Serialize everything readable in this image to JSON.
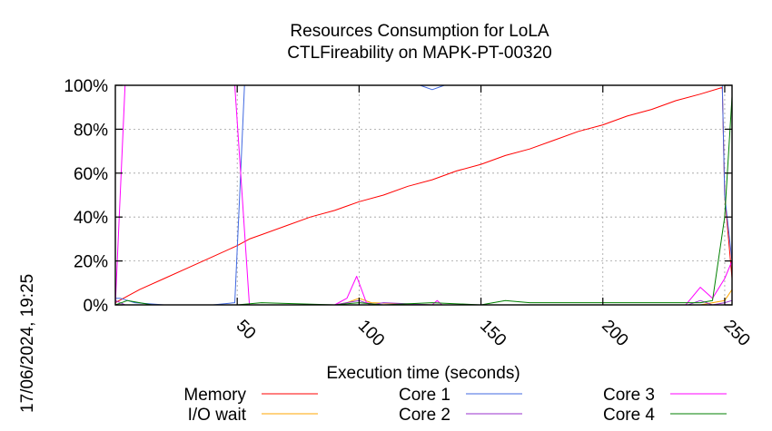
{
  "chart_data": {
    "type": "line",
    "title": [
      "Resources Consumption for LoLA",
      "CTLFireability on MAPK-PT-00320"
    ],
    "xlabel": "Execution time (seconds)",
    "ylabel": "",
    "timestamp": "17/06/2024, 19:25",
    "xlim": [
      0,
      253
    ],
    "ylim": [
      0,
      100
    ],
    "x_ticks": [
      50,
      100,
      150,
      200,
      250
    ],
    "x_tick_labels": [
      "50",
      "100",
      "150",
      "200",
      "250"
    ],
    "y_ticks": [
      0,
      20,
      40,
      60,
      80,
      100
    ],
    "y_tick_labels": [
      "0%",
      "20%",
      "40%",
      "60%",
      "80%",
      "100%"
    ],
    "grid": "vertical-and-horizontal-dashed",
    "legend_placement": "below",
    "series": [
      {
        "name": "Memory",
        "color": "#ff0000",
        "x": [
          0,
          5,
          10,
          20,
          30,
          40,
          50,
          55,
          60,
          70,
          80,
          90,
          100,
          110,
          120,
          130,
          140,
          150,
          160,
          170,
          180,
          190,
          200,
          210,
          220,
          230,
          240,
          249,
          250,
          253
        ],
        "y": [
          1,
          4,
          7,
          12,
          17,
          22,
          27,
          30,
          32,
          36,
          40,
          43,
          47,
          50,
          54,
          57,
          61,
          64,
          68,
          71,
          75,
          79,
          82,
          86,
          89,
          93,
          96,
          99,
          50,
          12
        ]
      },
      {
        "name": "I/O wait",
        "color": "#ffa500",
        "x": [
          0,
          10,
          50,
          90,
          95,
          100,
          105,
          130,
          200,
          240,
          245,
          250,
          253
        ],
        "y": [
          0,
          0,
          0,
          0,
          1,
          3,
          1,
          0,
          0,
          0,
          1,
          2,
          7
        ]
      },
      {
        "name": "Core 1",
        "color": "#4169e1",
        "x": [
          0,
          2,
          5,
          8,
          20,
          40,
          49,
          51,
          53,
          60,
          100,
          125,
          130,
          135,
          200,
          249,
          250,
          253
        ],
        "y": [
          3,
          3,
          2,
          1,
          0,
          0,
          1,
          50,
          100,
          100,
          100,
          100,
          98,
          100,
          100,
          100,
          50,
          20
        ]
      },
      {
        "name": "Core 2",
        "color": "#9932cc",
        "x": [
          0,
          2,
          4,
          50,
          90,
          95,
          100,
          105,
          110,
          130,
          200,
          235,
          240,
          245,
          250,
          253
        ],
        "y": [
          2,
          1,
          0,
          0,
          0,
          1,
          2,
          0,
          1,
          0,
          0,
          0,
          2,
          0,
          1,
          2
        ]
      },
      {
        "name": "Core 3",
        "color": "#ff00ff",
        "x": [
          0,
          4,
          49,
          52,
          55,
          90,
          95,
          99,
          103,
          108,
          130,
          132,
          134,
          200,
          234,
          240,
          245,
          250,
          253
        ],
        "y": [
          0,
          100,
          100,
          50,
          0,
          0,
          3,
          13,
          1,
          0,
          0,
          2,
          0,
          0,
          0,
          8,
          3,
          12,
          20
        ]
      },
      {
        "name": "Core 4",
        "color": "#008000",
        "x": [
          0,
          5,
          10,
          15,
          20,
          50,
          60,
          90,
          100,
          110,
          130,
          150,
          160,
          170,
          200,
          240,
          245,
          250,
          253
        ],
        "y": [
          0,
          2,
          1,
          0,
          0,
          0,
          1,
          0,
          1,
          0,
          1,
          0,
          2,
          1,
          1,
          1,
          2,
          40,
          95
        ]
      }
    ]
  }
}
